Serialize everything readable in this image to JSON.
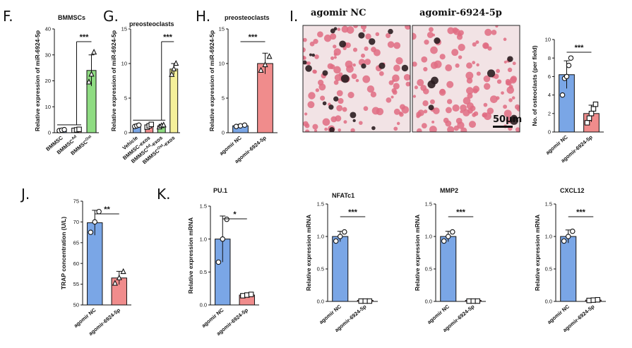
{
  "panels": {
    "F": "F.",
    "G": "G.",
    "H": "H.",
    "I": "I.",
    "J": "J.",
    "K": "K."
  },
  "micrographs": {
    "left_title": "agomir NC",
    "right_title": "agomir-6924-5p",
    "scale_bar": "50μm",
    "colors": {
      "background": "#f2e3e5",
      "cell": "#e06c82",
      "dark": "#2b1d20"
    }
  },
  "chart_data": [
    {
      "id": "F",
      "type": "bar",
      "title": "BMMSCs",
      "ylabel": "Relative expression of miR-6924-5p",
      "ylim": [
        0,
        40
      ],
      "yticks": [
        0,
        10,
        20,
        30,
        40
      ],
      "categories": [
        "BMMSC",
        "BMMSC^Ad",
        "BMMSC^Ost"
      ],
      "cat_display": [
        [
          "BMMSC",
          ""
        ],
        [
          "BMMSC",
          "Ad"
        ],
        [
          "BMMSC",
          "Ost"
        ]
      ],
      "values": [
        1.0,
        1.1,
        24.0
      ],
      "errors": [
        0.3,
        0.3,
        6.0
      ],
      "points": [
        [
          0.8,
          1.0,
          1.2
        ],
        [
          0.9,
          1.1,
          1.3
        ],
        [
          19.5,
          22.5,
          31.0
        ]
      ],
      "colors": [
        "#7aa6e6",
        "#f08c8c",
        "#8fdc82"
      ],
      "markers": [
        "circle",
        "square",
        "triangle"
      ],
      "significance": [
        {
          "from": 1,
          "to": 2,
          "label": "***"
        }
      ],
      "group_line": [
        0,
        1
      ]
    },
    {
      "id": "G",
      "type": "bar",
      "title": "preosteoclasts",
      "ylabel": "Relative expression of miR-6924-5p",
      "ylim": [
        0,
        15
      ],
      "yticks": [
        0,
        5,
        10,
        15
      ],
      "categories": [
        "Vehicle",
        "BMMSC-exos",
        "BMMSC^Ad-exos",
        "BMMSC^Ost-exos"
      ],
      "cat_display": [
        [
          "Vehicle",
          "",
          ""
        ],
        [
          "BMMSC-exos",
          "",
          ""
        ],
        [
          "BMMSC",
          "Ad",
          "-exos"
        ],
        [
          "BMMSC",
          "Ost",
          "-exos"
        ]
      ],
      "values": [
        1.0,
        1.0,
        1.0,
        9.2
      ],
      "errors": [
        0.2,
        0.2,
        0.2,
        0.8
      ],
      "points": [
        [
          0.9,
          1.0,
          1.1
        ],
        [
          0.8,
          1.0,
          1.2
        ],
        [
          0.8,
          1.0,
          1.1
        ],
        [
          8.4,
          9.2,
          10.0
        ]
      ],
      "colors": [
        "#7aa6e6",
        "#f08c8c",
        "#8fdc82",
        "#f5f09a"
      ],
      "markers": [
        "circle",
        "square",
        "triangle",
        "triangle"
      ],
      "significance": [
        {
          "from": 2,
          "to": 3,
          "label": "***"
        }
      ],
      "group_line": [
        0,
        2
      ]
    },
    {
      "id": "H",
      "type": "bar",
      "title": "preosteoclasts",
      "ylabel": "Relative expression of miR-6924-5p",
      "ylim": [
        0,
        15
      ],
      "yticks": [
        0,
        5,
        10,
        15
      ],
      "categories": [
        "agomir NC",
        "agomir-6924-5p"
      ],
      "values": [
        1.0,
        10.0
      ],
      "errors": [
        0.2,
        1.5
      ],
      "points": [
        [
          0.9,
          1.0,
          1.1
        ],
        [
          9.0,
          9.8,
          11.0
        ]
      ],
      "colors": [
        "#7aa6e6",
        "#f08c8c"
      ],
      "markers": [
        "circle",
        "triangle"
      ],
      "significance": [
        {
          "from": 0,
          "to": 1,
          "label": "***"
        }
      ]
    },
    {
      "id": "I",
      "type": "bar",
      "title": "",
      "ylabel": "No. of osteoclasts (per field)",
      "ylim": [
        0,
        10
      ],
      "yticks": [
        0,
        2,
        4,
        6,
        8,
        10
      ],
      "categories": [
        "agomir NC",
        "agomir-6924-5p"
      ],
      "values": [
        6.2,
        2.0
      ],
      "errors": [
        1.5,
        0.9
      ],
      "points": [
        [
          4.0,
          5.8,
          6.0,
          7.2,
          8.0
        ],
        [
          1.0,
          1.5,
          2.0,
          2.5,
          3.0
        ]
      ],
      "colors": [
        "#7aa6e6",
        "#f08c8c"
      ],
      "markers": [
        "circle",
        "square"
      ],
      "significance": [
        {
          "from": 0,
          "to": 1,
          "label": "***"
        }
      ]
    },
    {
      "id": "J",
      "type": "bar",
      "title": "",
      "ylabel": "TRAP concentration (U/L)",
      "ylim": [
        50,
        75
      ],
      "yticks": [
        50,
        55,
        60,
        65,
        70,
        75
      ],
      "categories": [
        "agomir NC",
        "agomir-6924-5p"
      ],
      "values": [
        69.8,
        56.5
      ],
      "errors": [
        3.0,
        1.6
      ],
      "points": [
        [
          67.5,
          70.0,
          72.5
        ],
        [
          55.2,
          56.5,
          58.0
        ]
      ],
      "colors": [
        "#7aa6e6",
        "#f08c8c"
      ],
      "markers": [
        "circle",
        "triangle"
      ],
      "significance": [
        {
          "from": 0,
          "to": 1,
          "label": "**"
        }
      ]
    },
    {
      "id": "K1",
      "type": "bar",
      "title": "PU.1",
      "ylabel": "Relative expression mRNA",
      "ylim": [
        0,
        1.5
      ],
      "yticks": [
        0.0,
        0.5,
        1.0,
        1.5
      ],
      "categories": [
        "agomir NC",
        "agomir-6924-5p"
      ],
      "values": [
        1.0,
        0.15
      ],
      "errors": [
        0.35,
        0.02
      ],
      "points": [
        [
          0.65,
          1.0,
          1.3
        ],
        [
          0.14,
          0.15,
          0.16
        ]
      ],
      "colors": [
        "#7aa6e6",
        "#f08c8c"
      ],
      "markers": [
        "circle",
        "square"
      ],
      "significance": [
        {
          "from": 0,
          "to": 1,
          "label": "*"
        }
      ]
    },
    {
      "id": "K2",
      "type": "bar",
      "title": "NFATc1",
      "ylabel": "Relative expression mRNA",
      "ylim": [
        0,
        1.5
      ],
      "yticks": [
        0.0,
        0.5,
        1.0,
        1.5
      ],
      "categories": [
        "agomir NC",
        "agomir-6924-5p"
      ],
      "values": [
        1.0,
        0.005
      ],
      "errors": [
        0.08,
        0.003
      ],
      "points": [
        [
          0.93,
          1.0,
          1.07
        ],
        [
          0.005,
          0.005,
          0.005
        ]
      ],
      "colors": [
        "#7aa6e6",
        "#f08c8c"
      ],
      "markers": [
        "circle",
        "square"
      ],
      "significance": [
        {
          "from": 0,
          "to": 1,
          "label": "***"
        }
      ]
    },
    {
      "id": "K3",
      "type": "bar",
      "title": "MMP2",
      "ylabel": "Relative expression mRNA",
      "ylim": [
        0,
        1.5
      ],
      "yticks": [
        0.0,
        0.5,
        1.0,
        1.5
      ],
      "categories": [
        "agomir NC",
        "agomir-6924-5p"
      ],
      "values": [
        1.0,
        0.005
      ],
      "errors": [
        0.08,
        0.003
      ],
      "points": [
        [
          0.93,
          1.0,
          1.07
        ],
        [
          0.005,
          0.005,
          0.005
        ]
      ],
      "colors": [
        "#7aa6e6",
        "#f08c8c"
      ],
      "markers": [
        "circle",
        "square"
      ],
      "significance": [
        {
          "from": 0,
          "to": 1,
          "label": "***"
        }
      ]
    },
    {
      "id": "K4",
      "type": "bar",
      "title": "CXCL12",
      "ylabel": "Relative expression mRNA",
      "ylim": [
        0,
        1.5
      ],
      "yticks": [
        0.0,
        0.5,
        1.0,
        1.5
      ],
      "categories": [
        "agomir NC",
        "agomir-6924-5p"
      ],
      "values": [
        1.0,
        0.02
      ],
      "errors": [
        0.1,
        0.005
      ],
      "points": [
        [
          0.93,
          1.0,
          1.08
        ],
        [
          0.015,
          0.02,
          0.025
        ]
      ],
      "colors": [
        "#7aa6e6",
        "#f08c8c"
      ],
      "markers": [
        "circle",
        "square"
      ],
      "significance": [
        {
          "from": 0,
          "to": 1,
          "label": "***"
        }
      ]
    }
  ]
}
